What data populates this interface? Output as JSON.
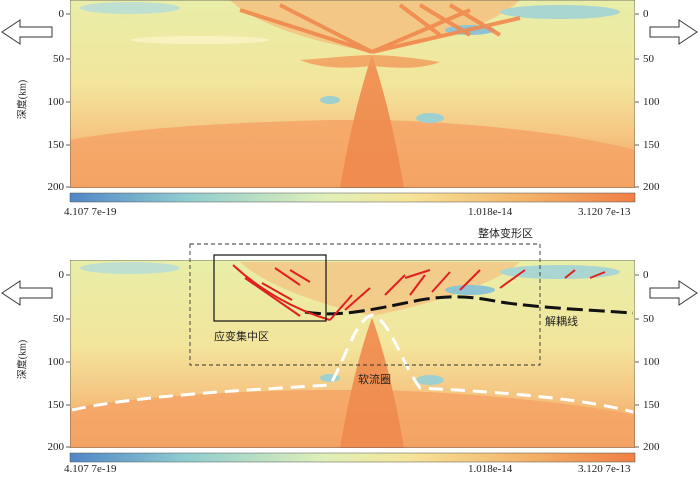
{
  "top_panel": {
    "y_axis_label": "深度(km)",
    "y_ticks": [
      "0",
      "50",
      "100",
      "150",
      "200"
    ],
    "colorbar": {
      "min_label": "4.107 7e-19",
      "mid_label": "1.018e-14",
      "max_label": "3.120 7e-13"
    }
  },
  "bottom_panel": {
    "y_axis_label": "深度(km)",
    "y_ticks": [
      "0",
      "50",
      "100",
      "150",
      "200"
    ],
    "annotations": {
      "whole_deformation": "整体变形区",
      "strain_concentration": "应变集中区",
      "decoupling_line": "解耦线",
      "asthenosphere": "软流圈"
    },
    "colorbar": {
      "min_label": "4.107 7e-19",
      "mid_label": "1.018e-14",
      "max_label": "3.120 7e-13"
    }
  },
  "colors": {
    "low": "#5b8fc9",
    "mid_low": "#9fd0c8",
    "mid": "#f5e8a0",
    "high": "#f08a4e",
    "fault": "#e02020",
    "decoupling": "#111111",
    "boundary": "#ffffff"
  },
  "arrows": [
    "left-arrow-icon",
    "right-arrow-icon"
  ]
}
